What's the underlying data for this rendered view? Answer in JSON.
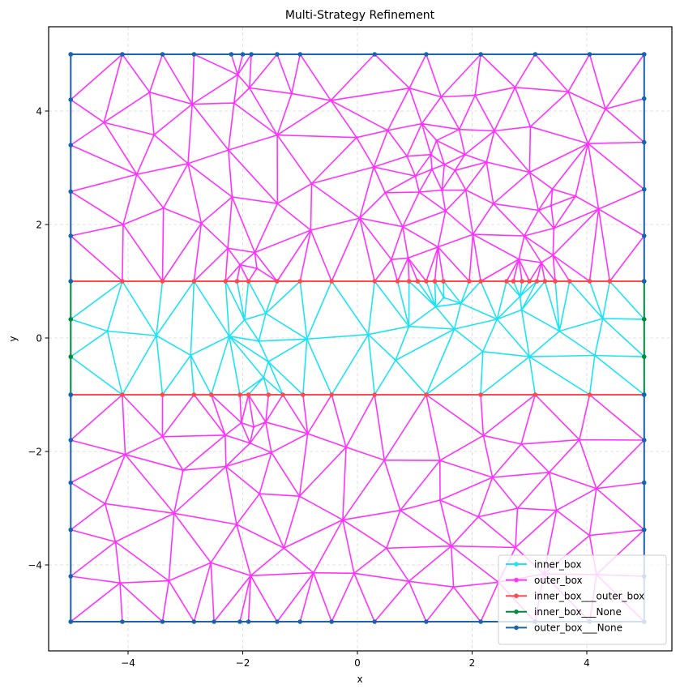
{
  "chart_data": {
    "type": "scatter",
    "subtype": "triangular-mesh",
    "title": "Multi-Strategy Refinement",
    "xlabel": "x",
    "ylabel": "y",
    "xlim": [
      -5.5,
      5.5
    ],
    "ylim": [
      -5.5,
      5.5
    ],
    "xticks": [
      -4,
      -2,
      0,
      2,
      4
    ],
    "yticks": [
      -4,
      -2,
      0,
      2,
      4
    ],
    "xtick_labels": [
      "−4",
      "−2",
      "0",
      "2",
      "4"
    ],
    "ytick_labels": [
      "−4",
      "−2",
      "0",
      "2",
      "4"
    ],
    "grid": true,
    "legend_position": "lower right",
    "regions": {
      "inner_box": {
        "xmin": -5,
        "xmax": 5,
        "ymin": -1,
        "ymax": 1
      },
      "outer_box": {
        "xmin": -5,
        "xmax": 5,
        "ymin": -5,
        "ymax": 5
      }
    },
    "series": [
      {
        "name": "inner_box",
        "color": "#1ee3f5",
        "kind": "mesh-edges",
        "region": "inner"
      },
      {
        "name": "outer_box",
        "color": "#ff33ff",
        "kind": "mesh-edges",
        "region": "outer"
      },
      {
        "name": "inner_box___outer_box",
        "color": "#ff4a4a",
        "kind": "interface",
        "lines": [
          {
            "y": 1,
            "x_nodes": [
              -5,
              -4.1,
              -3.4,
              -2.85,
              -2.3,
              -2.1,
              -1.9,
              -1.4,
              -1.0,
              -0.45,
              0.3,
              0.7,
              0.9,
              1.05,
              1.2,
              1.35,
              1.5,
              1.95,
              2.15,
              2.6,
              2.72,
              2.87,
              3.0,
              3.13,
              3.27,
              3.45,
              3.7,
              4.05,
              4.4,
              5
            ]
          },
          {
            "y": -1,
            "x_nodes": [
              -5,
              -4.1,
              -3.4,
              -2.85,
              -2.55,
              -2.05,
              -1.9,
              -1.55,
              -1.3,
              -0.95,
              -0.45,
              0.3,
              1.2,
              2.15,
              3.1,
              4.05,
              5
            ]
          }
        ]
      },
      {
        "name": "inner_box___None",
        "color": "#008a3e",
        "kind": "boundary",
        "lines": [
          {
            "x": -5,
            "y_nodes": [
              -1,
              -0.33,
              0.33,
              1
            ]
          },
          {
            "x": 5,
            "y_nodes": [
              -1,
              -0.33,
              0.33,
              1
            ]
          }
        ]
      },
      {
        "name": "outer_box___None",
        "color": "#1565b0",
        "kind": "boundary",
        "lines": [
          {
            "y": 5,
            "x_nodes": [
              -5,
              -4.1,
              -3.4,
              -2.85,
              -2.2,
              -2.0,
              -1.85,
              -1.4,
              -1.0,
              0.3,
              1.2,
              2.15,
              3.1,
              4.05,
              5
            ]
          },
          {
            "y": -5,
            "x_nodes": [
              -5,
              -4.1,
              -3.4,
              -2.85,
              -2.5,
              -2.05,
              -1.9,
              -1.4,
              -1.0,
              -0.45,
              0.3,
              1.2,
              2.15,
              3.1,
              4.05,
              5
            ]
          },
          {
            "x": -5,
            "y_nodes": [
              1,
              1.8,
              2.58,
              3.4,
              4.2,
              5
            ]
          },
          {
            "x": -5,
            "y_nodes": [
              -5,
              -4.2,
              -3.38,
              -2.55,
              -1.8,
              -1
            ]
          },
          {
            "x": 5,
            "y_nodes": [
              1,
              1.8,
              2.62,
              3.45,
              4.22,
              5
            ]
          },
          {
            "x": 5,
            "y_nodes": [
              -5,
              -4.2,
              -3.38,
              -2.55,
              -1.8,
              -1
            ]
          }
        ]
      }
    ],
    "refinement_hotspots": [
      {
        "region": "outer",
        "x": -1.95,
        "y": 4.6,
        "r": 0.4
      },
      {
        "region": "outer",
        "x": -1.9,
        "y": 1.2,
        "r": 0.45
      },
      {
        "region": "outer",
        "x": 0.8,
        "y": 1.35,
        "r": 0.55
      },
      {
        "region": "outer",
        "x": 1.4,
        "y": 3.0,
        "r": 1.0
      },
      {
        "region": "outer",
        "x": 3.2,
        "y": 1.3,
        "r": 0.55
      },
      {
        "region": "outer",
        "x": 3.4,
        "y": 2.3,
        "r": 0.5
      },
      {
        "region": "outer",
        "x": -1.9,
        "y": -1.6,
        "r": 0.5
      },
      {
        "region": "outer",
        "x": -1.8,
        "y": -4.9,
        "r": 0.3
      },
      {
        "region": "inner",
        "x": -1.9,
        "y": 0.3,
        "r": 0.5
      },
      {
        "region": "inner",
        "x": 1.5,
        "y": 0.65,
        "r": 0.5
      },
      {
        "region": "inner",
        "x": 2.85,
        "y": 0.8,
        "r": 0.45
      },
      {
        "region": "inner",
        "x": -1.7,
        "y": -0.75,
        "r": 0.35
      }
    ]
  },
  "legend": {
    "items": [
      {
        "label": "inner_box",
        "color": "#1ee3f5"
      },
      {
        "label": "outer_box",
        "color": "#ff33ff"
      },
      {
        "label": "inner_box___outer_box",
        "color": "#ff4a4a"
      },
      {
        "label": "inner_box___None",
        "color": "#008a3e"
      },
      {
        "label": "outer_box___None",
        "color": "#1565b0"
      }
    ]
  }
}
